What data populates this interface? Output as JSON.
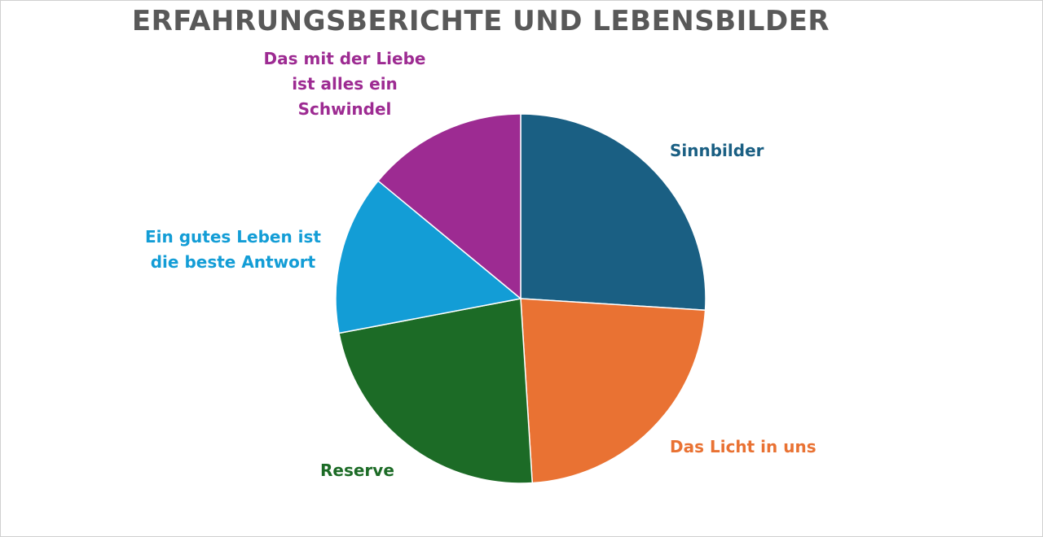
{
  "chart_data": {
    "type": "pie",
    "title": "ERFAHRUNGSBERICHTE UND LEBENSBILDER",
    "slices": [
      {
        "label": "Sinnbilder",
        "value": 26,
        "color": "#1a5f83"
      },
      {
        "label": "Das Licht in uns",
        "value": 23,
        "color": "#e97233"
      },
      {
        "label": "Reserve",
        "value": 23,
        "color": "#1c6b26"
      },
      {
        "label": "Ein gutes Leben ist die beste Antwort",
        "value": 14,
        "color": "#139dd6"
      },
      {
        "label": "Das mit der Liebe ist alles ein Schwindel",
        "value": 14,
        "color": "#9d2b92"
      }
    ],
    "start_angle_deg": 0,
    "direction": "clockwise",
    "legend": "none",
    "data_labels": "category-name"
  },
  "labels_display": {
    "sinnbilder": "Sinnbilder",
    "licht": "Das Licht in uns",
    "reserve": "Reserve",
    "leben": "Ein gutes Leben ist\ndie beste Antwort",
    "liebe": "Das mit der Liebe\nist alles ein\nSchwindel"
  }
}
